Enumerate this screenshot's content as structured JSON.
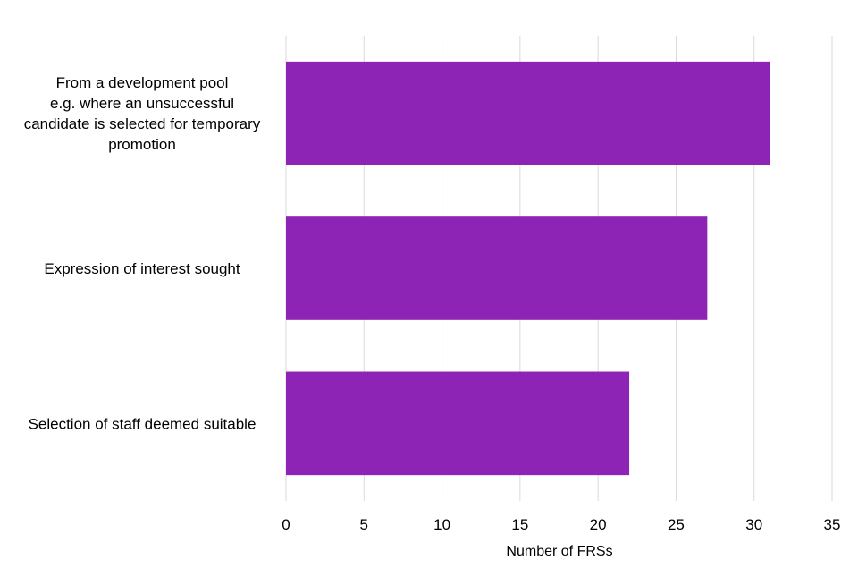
{
  "chart_data": {
    "type": "bar",
    "orientation": "horizontal",
    "title": "",
    "categories": [
      [
        "From a development pool",
        "e.g. where an unsuccessful",
        "candidate is selected for temporary",
        "promotion"
      ],
      [
        "Expression of interest sought"
      ],
      [
        "Selection of staff deemed suitable"
      ]
    ],
    "values": [
      31,
      27,
      22
    ],
    "xlabel": "Number of FRSs",
    "ylabel": "",
    "xlim": [
      0,
      35
    ],
    "ticks": [
      "0",
      "5",
      "10",
      "15",
      "20",
      "25",
      "30",
      "35"
    ],
    "grid": true,
    "legend": "none",
    "bar_color": "#8e24b5"
  }
}
